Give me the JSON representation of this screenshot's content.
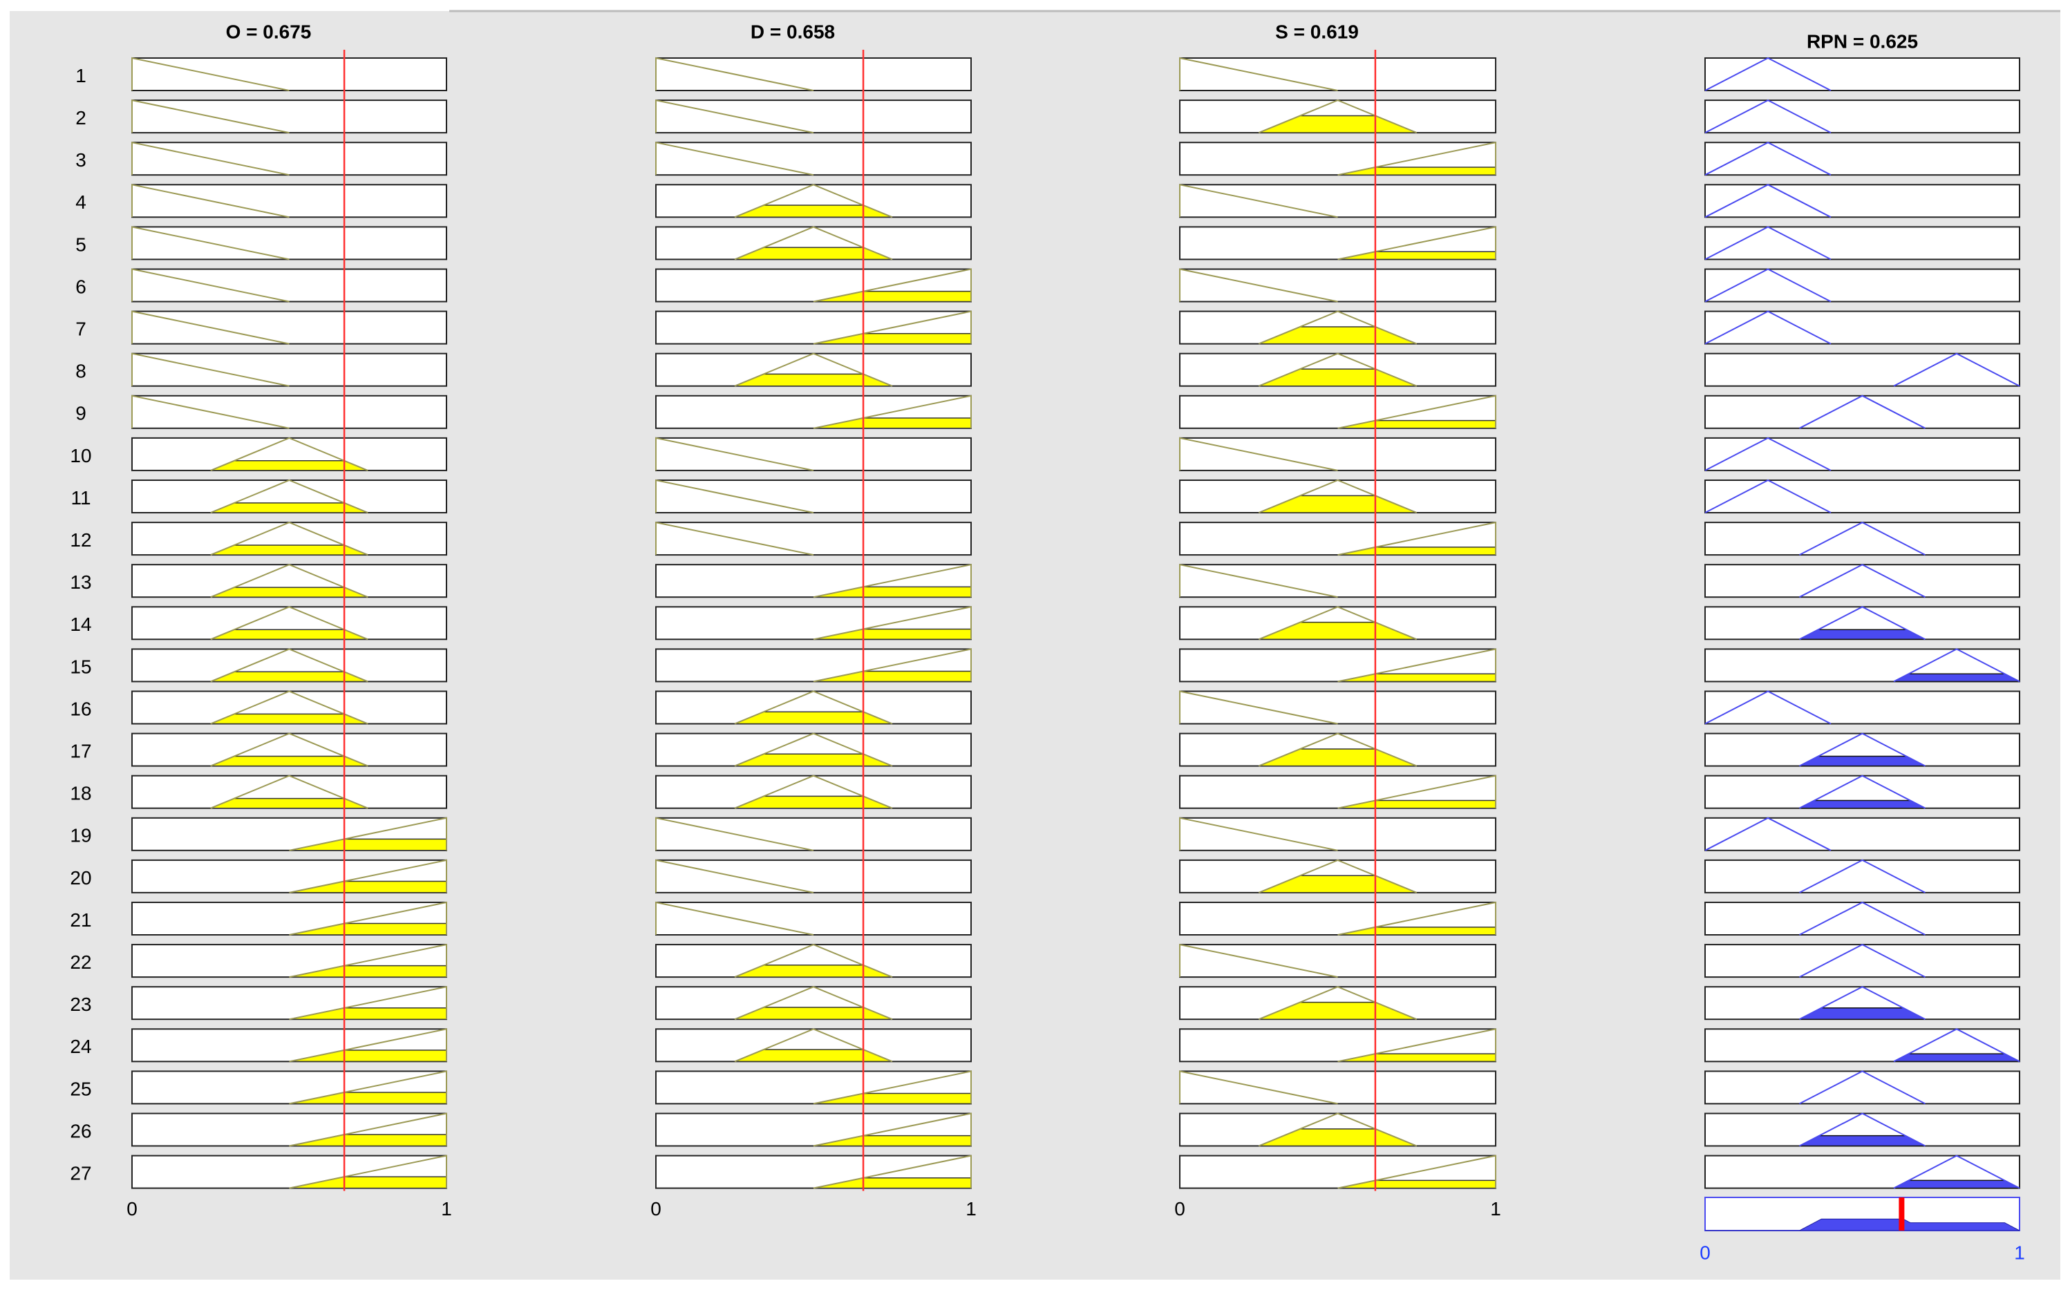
{
  "chart_data": {
    "type": "fuzzy-rule-viewer",
    "inputs": [
      {
        "title": "O = 0.675",
        "value": 0.675
      },
      {
        "title": "D = 0.658",
        "value": 0.658
      },
      {
        "title": "S = 0.619",
        "value": 0.619
      }
    ],
    "output": {
      "title": "RPN = 0.625",
      "value": 0.625
    },
    "input_mfs": [
      [
        0,
        0,
        0.5
      ],
      [
        0.25,
        0.5,
        0.75
      ],
      [
        0.5,
        1,
        1
      ]
    ],
    "output_mfs": [
      [
        0,
        0.2,
        0.4
      ],
      [
        0.3,
        0.5,
        0.7
      ],
      [
        0.6,
        0.8,
        1
      ]
    ],
    "xlim": [
      0,
      1
    ],
    "xticks": [
      0,
      1
    ],
    "rules": [
      {
        "number": 1,
        "inputs": [
          0,
          0,
          0
        ],
        "output": 0
      },
      {
        "number": 2,
        "inputs": [
          0,
          0,
          1
        ],
        "output": 0
      },
      {
        "number": 3,
        "inputs": [
          0,
          0,
          2
        ],
        "output": 0
      },
      {
        "number": 4,
        "inputs": [
          0,
          1,
          0
        ],
        "output": 0
      },
      {
        "number": 5,
        "inputs": [
          0,
          1,
          2
        ],
        "output": 0
      },
      {
        "number": 6,
        "inputs": [
          0,
          2,
          0
        ],
        "output": 0
      },
      {
        "number": 7,
        "inputs": [
          0,
          2,
          1
        ],
        "output": 0
      },
      {
        "number": 8,
        "inputs": [
          0,
          1,
          1
        ],
        "output": 2
      },
      {
        "number": 9,
        "inputs": [
          0,
          2,
          2
        ],
        "output": 1
      },
      {
        "number": 10,
        "inputs": [
          1,
          0,
          0
        ],
        "output": 0
      },
      {
        "number": 11,
        "inputs": [
          1,
          0,
          1
        ],
        "output": 0
      },
      {
        "number": 12,
        "inputs": [
          1,
          0,
          2
        ],
        "output": 1
      },
      {
        "number": 13,
        "inputs": [
          1,
          2,
          0
        ],
        "output": 1
      },
      {
        "number": 14,
        "inputs": [
          1,
          2,
          1
        ],
        "output": 1
      },
      {
        "number": 15,
        "inputs": [
          1,
          2,
          2
        ],
        "output": 2
      },
      {
        "number": 16,
        "inputs": [
          1,
          1,
          0
        ],
        "output": 0
      },
      {
        "number": 17,
        "inputs": [
          1,
          1,
          1
        ],
        "output": 1
      },
      {
        "number": 18,
        "inputs": [
          1,
          1,
          2
        ],
        "output": 1
      },
      {
        "number": 19,
        "inputs": [
          2,
          0,
          0
        ],
        "output": 0
      },
      {
        "number": 20,
        "inputs": [
          2,
          0,
          1
        ],
        "output": 1
      },
      {
        "number": 21,
        "inputs": [
          2,
          0,
          2
        ],
        "output": 1
      },
      {
        "number": 22,
        "inputs": [
          2,
          1,
          0
        ],
        "output": 1
      },
      {
        "number": 23,
        "inputs": [
          2,
          1,
          1
        ],
        "output": 1
      },
      {
        "number": 24,
        "inputs": [
          2,
          1,
          2
        ],
        "output": 2
      },
      {
        "number": 25,
        "inputs": [
          2,
          2,
          0
        ],
        "output": 1
      },
      {
        "number": 26,
        "inputs": [
          2,
          2,
          1
        ],
        "output": 1
      },
      {
        "number": 27,
        "inputs": [
          2,
          2,
          2
        ],
        "output": 2
      }
    ]
  }
}
